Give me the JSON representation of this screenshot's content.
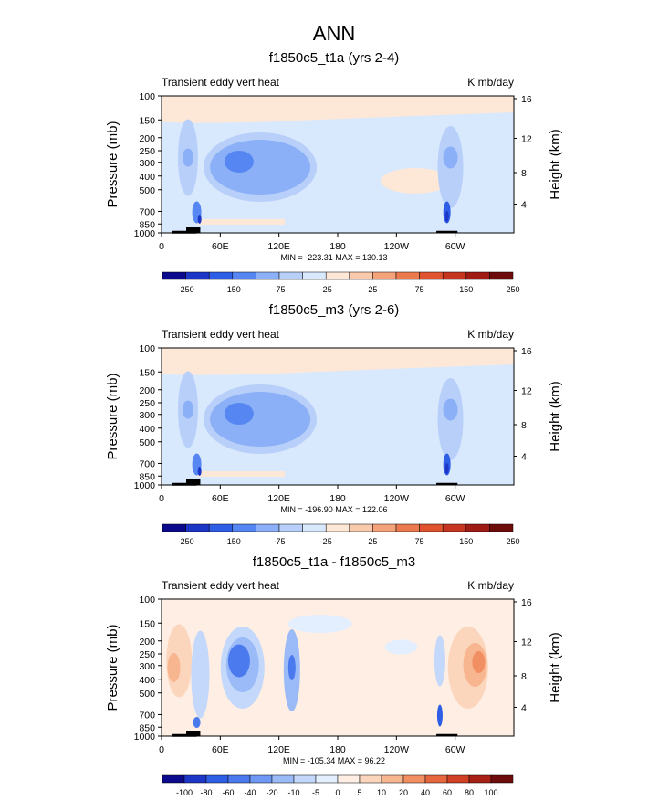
{
  "figure_title": "ANN",
  "chart_data": [
    {
      "type": "heatmap",
      "title": "f1850c5_t1a (yrs 2-4)",
      "left_label": "Transient eddy vert heat",
      "right_label": "K mb/day",
      "ylabel": "Pressure (mb)",
      "y2label": "Height (km)",
      "x_ticks": [
        "0",
        "60E",
        "120E",
        "180",
        "120W",
        "60W"
      ],
      "y_ticks": [
        "100",
        "150",
        "200",
        "250",
        "300",
        "400",
        "500",
        "700",
        "850",
        "1000"
      ],
      "y2_ticks": [
        "16",
        "12",
        "8",
        "4"
      ],
      "stats": "MIN = -223.31   MAX = 130.13",
      "colorbar_labels": [
        "-250",
        "-150",
        "-75",
        "-25",
        "25",
        "75",
        "150",
        "250"
      ],
      "colorbar_colors": [
        "#0c0a8c",
        "#1c36c8",
        "#2f5ee6",
        "#5686f2",
        "#8bb0f7",
        "#b8d0f9",
        "#d8e8fd",
        "#fde8d8",
        "#f9c9ac",
        "#f4a27a",
        "#ec7a4f",
        "#e0532f",
        "#c53520",
        "#a01b14",
        "#6e0b0b"
      ],
      "panel_index": 0
    },
    {
      "type": "heatmap",
      "title": "f1850c5_m3 (yrs 2-6)",
      "left_label": "Transient eddy vert heat",
      "right_label": "K mb/day",
      "ylabel": "Pressure (mb)",
      "y2label": "Height (km)",
      "x_ticks": [
        "0",
        "60E",
        "120E",
        "180",
        "120W",
        "60W"
      ],
      "y_ticks": [
        "100",
        "150",
        "200",
        "250",
        "300",
        "400",
        "500",
        "700",
        "850",
        "1000"
      ],
      "y2_ticks": [
        "16",
        "12",
        "8",
        "4"
      ],
      "stats": "MIN = -196.90   MAX = 122.06",
      "colorbar_labels": [
        "-250",
        "-150",
        "-75",
        "-25",
        "25",
        "75",
        "150",
        "250"
      ],
      "colorbar_colors": [
        "#0c0a8c",
        "#1c36c8",
        "#2f5ee6",
        "#5686f2",
        "#8bb0f7",
        "#b8d0f9",
        "#d8e8fd",
        "#fde8d8",
        "#f9c9ac",
        "#f4a27a",
        "#ec7a4f",
        "#e0532f",
        "#c53520",
        "#a01b14",
        "#6e0b0b"
      ],
      "panel_index": 1
    },
    {
      "type": "heatmap",
      "title": "f1850c5_t1a - f1850c5_m3",
      "left_label": "Transient eddy vert heat",
      "right_label": "K mb/day",
      "ylabel": "Pressure (mb)",
      "y2label": "Height (km)",
      "x_ticks": [
        "0",
        "60E",
        "120E",
        "180",
        "120W",
        "60W"
      ],
      "y_ticks": [
        "100",
        "150",
        "200",
        "250",
        "300",
        "400",
        "500",
        "700",
        "850",
        "1000"
      ],
      "y2_ticks": [
        "16",
        "12",
        "8",
        "4"
      ],
      "stats": "MIN = -105.34   MAX = 96.22",
      "colorbar_labels": [
        "-100",
        "-80",
        "-60",
        "-40",
        "-20",
        "-10",
        "-5",
        "0",
        "5",
        "10",
        "20",
        "40",
        "60",
        "80",
        "100"
      ],
      "colorbar_colors": [
        "#0c0a8c",
        "#1c36c8",
        "#2f5ee6",
        "#4a7aee",
        "#6f98f4",
        "#9bbbf8",
        "#c3d8fb",
        "#e3eefe",
        "#feeee3",
        "#fbd6bd",
        "#f7b690",
        "#f18f63",
        "#e6663d",
        "#cf4024",
        "#a81f15",
        "#6e0b0b"
      ],
      "panel_index": 2
    }
  ]
}
